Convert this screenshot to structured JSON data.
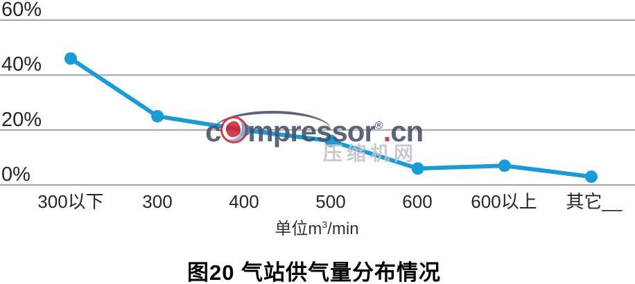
{
  "chart_data": {
    "type": "line",
    "title": "图20 气站供气量分布情况",
    "categories": [
      "300以下",
      "300",
      "400",
      "500",
      "600",
      "600以上",
      "其它__"
    ],
    "values": [
      46,
      25,
      20,
      16,
      6,
      7,
      3
    ],
    "unit": "%",
    "xlabel": "单位m³/min",
    "xlabel_parts": {
      "prefix": "单位m",
      "sup": "3",
      "suffix": "/min"
    },
    "yticks": [
      60,
      40,
      20,
      0
    ],
    "ytick_labels": [
      "60%",
      "40%",
      "20%",
      "0%"
    ],
    "ylim": [
      0,
      60
    ],
    "grid": true,
    "legend": false,
    "line_color": "#1a9ad7",
    "marker": "circle"
  },
  "watermark": {
    "part1": "c",
    "part2": "mpressor",
    "reg": "®",
    "dot": ".",
    "part3": "cn",
    "cn_text": "压缩机网"
  },
  "colors": {
    "grid": "#a2a2a2",
    "axis_text": "#262626",
    "title_text": "#000000",
    "watermark_navy": "#475066",
    "watermark_red": "#cf2330",
    "watermark_gray": "#c2c3c9"
  }
}
